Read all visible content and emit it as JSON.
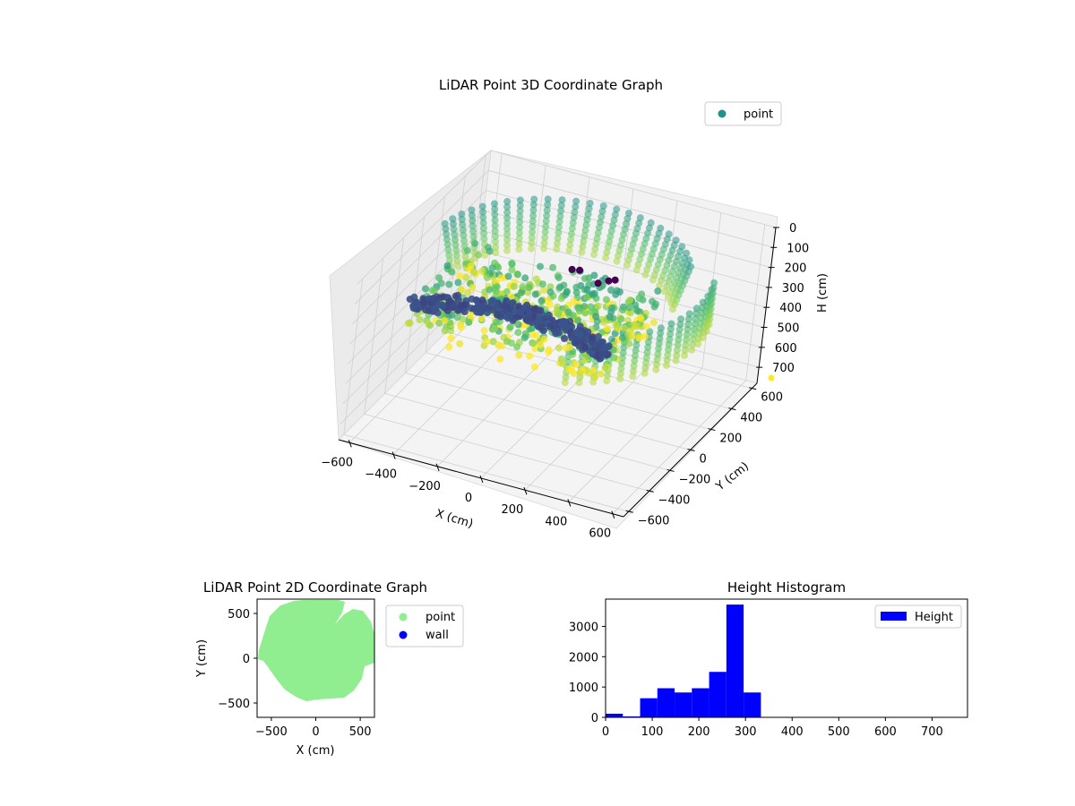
{
  "chart_data": [
    {
      "type": "scatter3d",
      "title": "LiDAR Point 3D Coordinate Graph",
      "xlabel": "X (cm)",
      "ylabel": "Y (cm)",
      "zlabel": "H (cm)",
      "xticks": [
        -600,
        -400,
        -200,
        0,
        200,
        400,
        600
      ],
      "yticks": [
        -600,
        -400,
        -200,
        0,
        200,
        400,
        600
      ],
      "zticks": [
        0,
        100,
        200,
        300,
        400,
        500,
        600,
        700
      ],
      "xlim": [
        -650,
        650
      ],
      "ylim": [
        -650,
        650
      ],
      "zlim": [
        0,
        780
      ],
      "z_inverted": true,
      "colormap": "viridis",
      "legend": [
        {
          "label": "point",
          "color": "#21918c"
        }
      ],
      "legend_position": "top-right",
      "grid": true
    },
    {
      "type": "scatter",
      "title": "LiDAR Point 2D Coordinate Graph",
      "xlabel": "X (cm)",
      "ylabel": "Y (cm)",
      "xticks": [
        -500,
        0,
        500
      ],
      "yticks": [
        -500,
        0,
        500
      ],
      "xlim": [
        -660,
        660
      ],
      "ylim": [
        -660,
        660
      ],
      "series": [
        {
          "name": "point",
          "color": "#90ee90"
        },
        {
          "name": "wall",
          "color": "#0000ff"
        }
      ],
      "legend_position": "outside-right",
      "grid": false
    },
    {
      "type": "bar",
      "title": "Height Histogram",
      "xlabel": "",
      "ylabel": "",
      "bin_edges": [
        0,
        37,
        74,
        111,
        148,
        185,
        222,
        259,
        296,
        333
      ],
      "values": [
        120,
        30,
        630,
        960,
        820,
        960,
        1500,
        3720,
        820
      ],
      "xticks": [
        0,
        100,
        200,
        300,
        400,
        500,
        600,
        700
      ],
      "yticks": [
        0,
        1000,
        2000,
        3000
      ],
      "xlim": [
        0,
        776
      ],
      "ylim": [
        0,
        3900
      ],
      "series": [
        {
          "name": "Height",
          "color": "#0000ff"
        }
      ],
      "legend_position": "top-right",
      "grid": false
    }
  ]
}
